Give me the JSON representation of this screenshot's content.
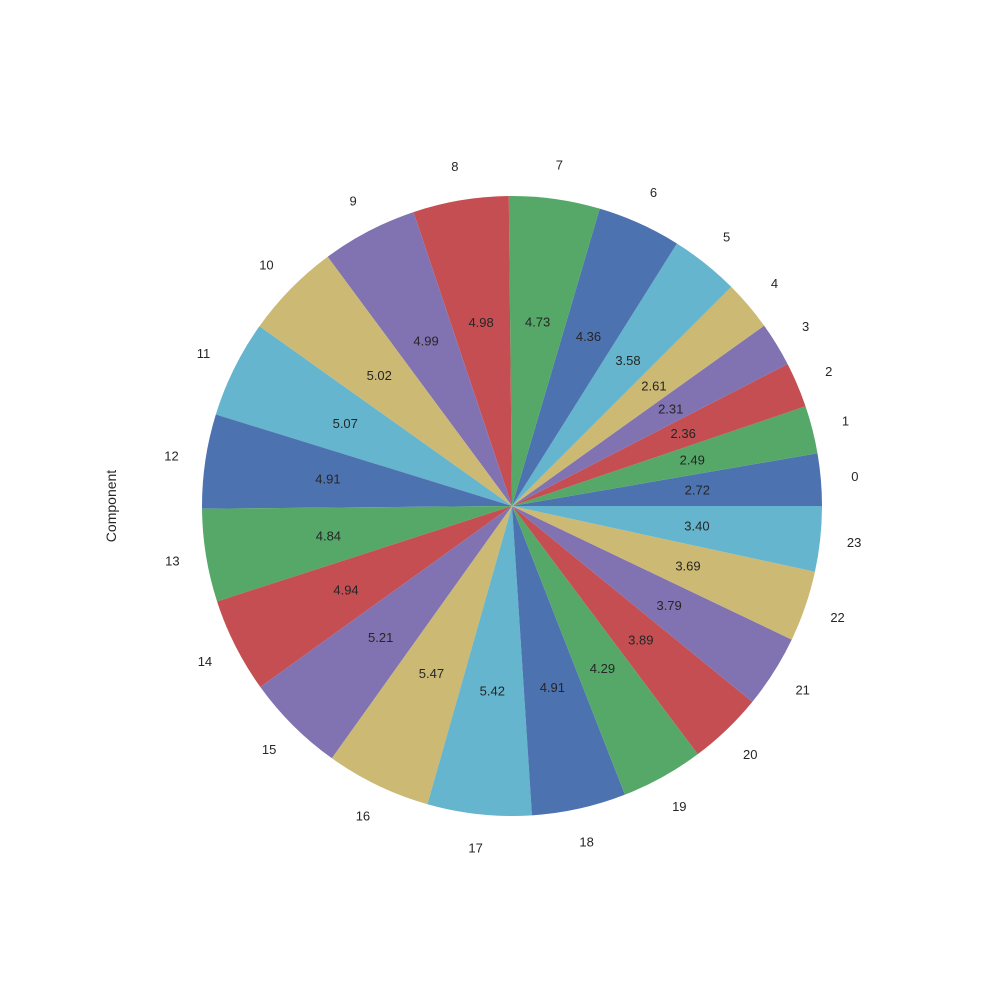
{
  "chart_data": {
    "type": "pie",
    "ylabel": "Component",
    "categories": [
      "0",
      "1",
      "2",
      "3",
      "4",
      "5",
      "6",
      "7",
      "8",
      "9",
      "10",
      "11",
      "12",
      "13",
      "14",
      "15",
      "16",
      "17",
      "18",
      "19",
      "20",
      "21",
      "22",
      "23"
    ],
    "values": [
      2.72,
      2.49,
      2.36,
      2.31,
      2.61,
      3.58,
      4.36,
      4.73,
      4.98,
      4.99,
      5.02,
      5.07,
      4.91,
      4.84,
      4.94,
      5.21,
      5.47,
      5.42,
      4.91,
      4.29,
      3.89,
      3.79,
      3.69,
      3.4
    ],
    "value_labels": [
      "2.72",
      "2.49",
      "2.36",
      "2.31",
      "2.61",
      "3.58",
      "4.36",
      "4.73",
      "4.98",
      "4.99",
      "5.02",
      "5.07",
      "4.91",
      "4.84",
      "4.94",
      "5.21",
      "5.47",
      "5.42",
      "4.91",
      "4.29",
      "3.89",
      "3.79",
      "3.69",
      "3.40"
    ],
    "start_angle_deg": 0,
    "direction": "counterclockwise",
    "colors": [
      "#4C72B0",
      "#55A868",
      "#C44E52",
      "#8172B2",
      "#CCB974",
      "#64B5CD"
    ]
  }
}
